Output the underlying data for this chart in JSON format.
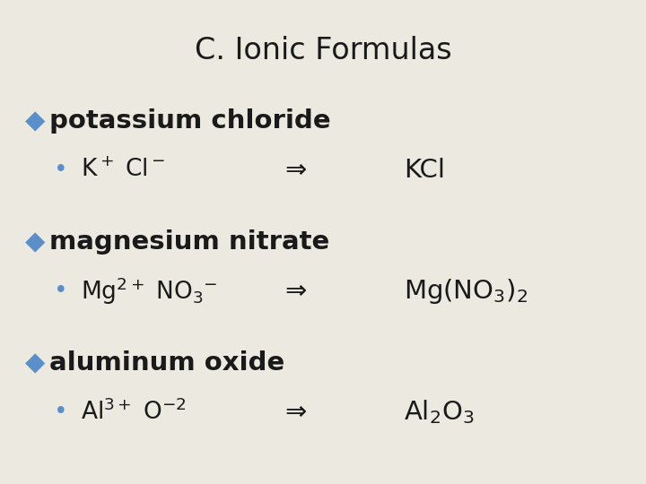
{
  "title": "C. Ionic Formulas",
  "background_color": "#eceae0",
  "title_color": "#1a1a1a",
  "text_color": "#1a1a1a",
  "diamond_color": "#5b8fc9",
  "bullet_color": "#5b8fc9",
  "title_fontsize": 24,
  "header_fontsize": 21,
  "body_fontsize": 19,
  "sections": [
    {
      "header": "potassium chloride",
      "ions": "K$^+$ Cl$^-$",
      "arrow": "⇒",
      "formula": "KCl"
    },
    {
      "header": "magnesium nitrate",
      "ions": "Mg$^{2+}$ NO$_3$$^{-}$",
      "arrow": "⇒",
      "formula": "Mg(NO$_3$)$_2$"
    },
    {
      "header": "aluminum oxide",
      "ions": "Al$^{3+}$ O$^{-2}$",
      "arrow": "⇒",
      "formula": "Al$_2$O$_3$"
    }
  ]
}
